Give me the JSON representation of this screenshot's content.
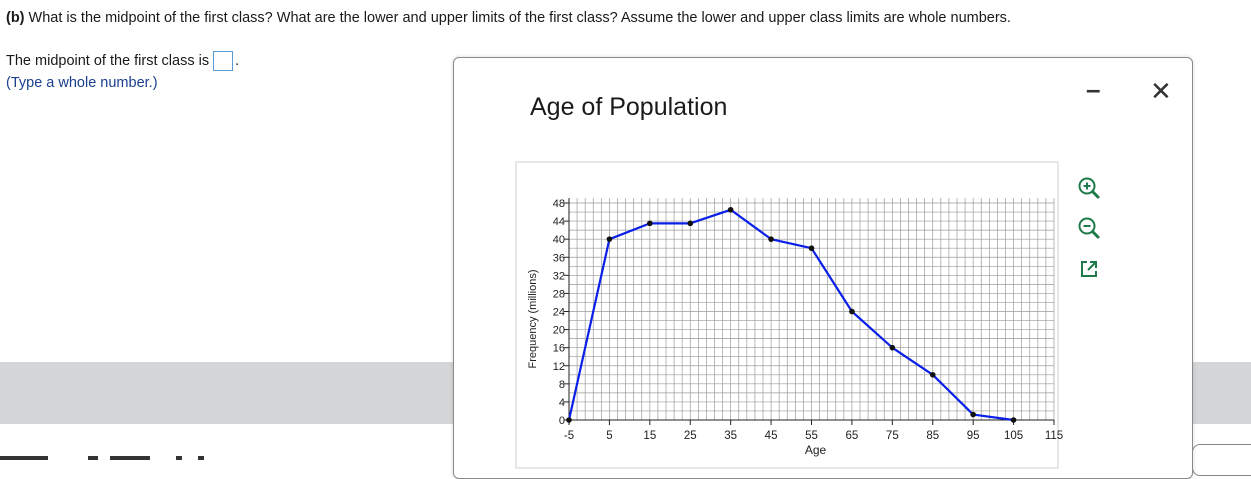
{
  "question": {
    "part": "(b)",
    "text": "What is the midpoint of the first class? What are the lower and upper limits of the first class? Assume the lower and upper class limits are whole numbers."
  },
  "answer": {
    "prompt": "The midpoint of the first class is",
    "hint": "(Type a whole number.)"
  },
  "popup": {
    "minimize_label": "–",
    "close_label": "✕",
    "tools": {
      "zoom_in_icon": "magnifier-plus",
      "zoom_out_icon": "magnifier-minus",
      "open_icon": "external-window"
    }
  },
  "colors": {
    "line": "#0a1fe8",
    "marker": "#111111",
    "grid": "#9a9a9a",
    "tool": "#1f7a4a"
  },
  "chart_data": {
    "type": "line",
    "title": "Age of Population",
    "xlabel": "Age",
    "ylabel": "Frequency (millions)",
    "x_ticks": [
      "-5",
      "5",
      "15",
      "25",
      "35",
      "45",
      "55",
      "65",
      "75",
      "85",
      "95",
      "105",
      "115"
    ],
    "y_ticks": [
      "0",
      "4",
      "8",
      "12",
      "16",
      "20",
      "24",
      "28",
      "32",
      "36",
      "40",
      "44",
      "48"
    ],
    "xlim": [
      -5,
      115
    ],
    "ylim": [
      0,
      48
    ],
    "grid": true,
    "series": [
      {
        "x": [
          -5,
          5,
          15,
          25,
          35,
          45,
          55,
          65,
          75,
          85,
          95,
          105
        ],
        "y": [
          0,
          40,
          43.5,
          43.5,
          46.5,
          40,
          38,
          24,
          16,
          10,
          1.2,
          0
        ]
      }
    ]
  }
}
